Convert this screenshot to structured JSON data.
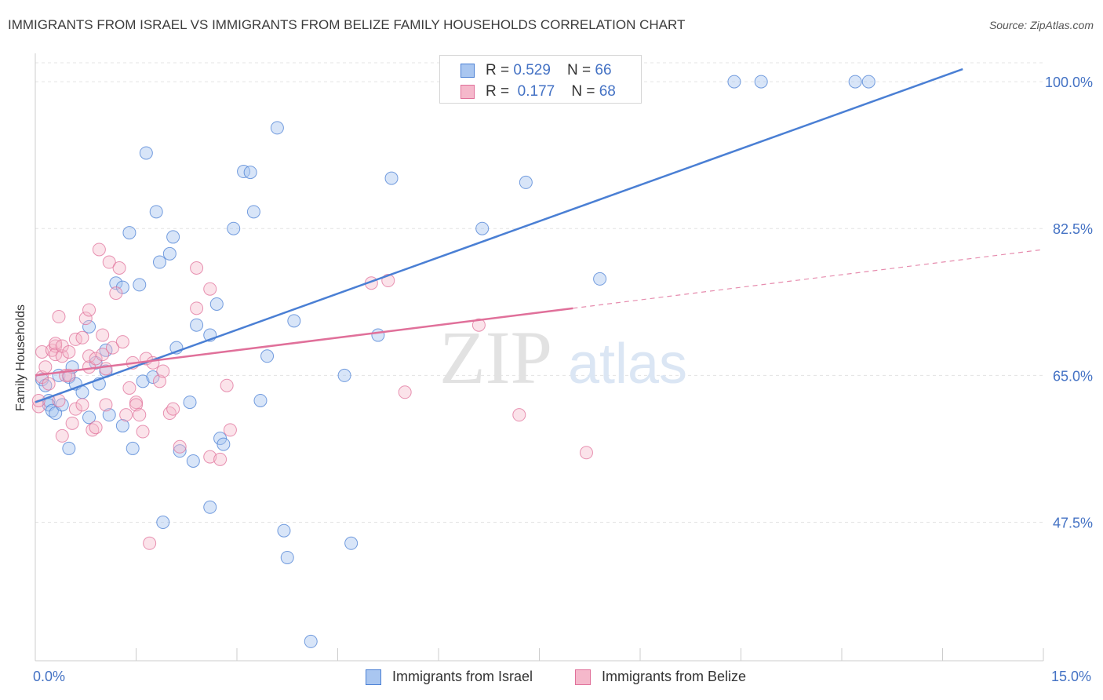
{
  "title": "IMMIGRANTS FROM ISRAEL VS IMMIGRANTS FROM BELIZE FAMILY HOUSEHOLDS CORRELATION CHART",
  "source": "Source: ZipAtlas.com",
  "watermark": {
    "zip": "ZIP",
    "atlas": "atlas"
  },
  "legend": {
    "israel": {
      "r_label": "R = ",
      "r_value": "0.529",
      "n_label": "N = ",
      "n_value": "66",
      "color": "#4a7fd4",
      "fill": "#a9c6f0"
    },
    "belize": {
      "r_label": "R = ",
      "r_value": "0.177",
      "n_label": "N = ",
      "n_value": "68",
      "color": "#e0709a",
      "fill": "#f5b8cb"
    }
  },
  "bottom_legend": {
    "israel": "Immigrants from Israel",
    "belize": "Immigrants from Belize"
  },
  "chart_data": {
    "type": "scatter",
    "title": "IMMIGRANTS FROM ISRAEL VS IMMIGRANTS FROM BELIZE FAMILY HOUSEHOLDS CORRELATION CHART",
    "xlabel": "",
    "ylabel": "Family Households",
    "xlim": [
      0,
      15
    ],
    "ylim": [
      31,
      103
    ],
    "x_tick_labels": [
      "0.0%",
      "15.0%"
    ],
    "y_ticks": [
      47.5,
      65.0,
      82.5,
      100.0
    ],
    "y_tick_labels": [
      "47.5%",
      "65.0%",
      "82.5%",
      "100.0%"
    ],
    "grid": true,
    "series": [
      {
        "name": "Immigrants from Israel",
        "color": "#4a7fd4",
        "trend": {
          "x0": 0.0,
          "y0": 61.8,
          "x1": 13.8,
          "y1": 101.5,
          "solid_to": 13.8
        },
        "points": [
          [
            0.1,
            64.5
          ],
          [
            0.15,
            63.8
          ],
          [
            0.2,
            62.0
          ],
          [
            0.2,
            61.5
          ],
          [
            0.25,
            60.8
          ],
          [
            0.3,
            60.5
          ],
          [
            0.35,
            65.0
          ],
          [
            0.4,
            61.5
          ],
          [
            0.5,
            64.8
          ],
          [
            0.5,
            56.3
          ],
          [
            0.55,
            66.0
          ],
          [
            0.6,
            64.0
          ],
          [
            0.7,
            63.0
          ],
          [
            0.8,
            60.0
          ],
          [
            0.8,
            70.8
          ],
          [
            0.9,
            66.5
          ],
          [
            0.95,
            64.0
          ],
          [
            1.05,
            68.0
          ],
          [
            1.05,
            65.5
          ],
          [
            1.1,
            60.3
          ],
          [
            1.2,
            76.0
          ],
          [
            1.3,
            75.5
          ],
          [
            1.3,
            59.0
          ],
          [
            1.4,
            82.0
          ],
          [
            1.45,
            56.3
          ],
          [
            1.55,
            75.8
          ],
          [
            1.6,
            64.3
          ],
          [
            1.65,
            91.5
          ],
          [
            1.75,
            64.8
          ],
          [
            1.8,
            84.5
          ],
          [
            1.85,
            78.5
          ],
          [
            1.9,
            47.5
          ],
          [
            2.0,
            79.5
          ],
          [
            2.05,
            81.5
          ],
          [
            2.1,
            68.3
          ],
          [
            2.15,
            56.0
          ],
          [
            2.3,
            61.8
          ],
          [
            2.35,
            54.8
          ],
          [
            2.4,
            71.0
          ],
          [
            2.6,
            69.8
          ],
          [
            2.6,
            49.3
          ],
          [
            2.7,
            73.5
          ],
          [
            2.75,
            57.5
          ],
          [
            2.8,
            56.8
          ],
          [
            2.95,
            82.5
          ],
          [
            3.1,
            89.3
          ],
          [
            3.2,
            89.2
          ],
          [
            3.25,
            84.5
          ],
          [
            3.35,
            62.0
          ],
          [
            3.45,
            67.3
          ],
          [
            3.6,
            94.5
          ],
          [
            3.7,
            46.5
          ],
          [
            3.75,
            43.3
          ],
          [
            3.85,
            71.5
          ],
          [
            4.1,
            33.3
          ],
          [
            4.6,
            65.0
          ],
          [
            4.7,
            45.0
          ],
          [
            5.1,
            69.8
          ],
          [
            5.3,
            88.5
          ],
          [
            6.65,
            82.5
          ],
          [
            7.3,
            88.0
          ],
          [
            8.4,
            76.5
          ],
          [
            10.4,
            100.0
          ],
          [
            10.8,
            100.0
          ],
          [
            12.2,
            100.0
          ],
          [
            12.4,
            100.0
          ]
        ]
      },
      {
        "name": "Immigrants from Belize",
        "color": "#e0709a",
        "trend": {
          "x0": 0.0,
          "y0": 65.0,
          "x1": 15.0,
          "y1": 80.0,
          "solid_to": 8.0
        },
        "points": [
          [
            0.05,
            61.3
          ],
          [
            0.05,
            62.0
          ],
          [
            0.1,
            64.8
          ],
          [
            0.1,
            67.8
          ],
          [
            0.15,
            66.0
          ],
          [
            0.2,
            64.0
          ],
          [
            0.25,
            68.0
          ],
          [
            0.3,
            68.5
          ],
          [
            0.3,
            68.8
          ],
          [
            0.3,
            67.5
          ],
          [
            0.35,
            62.0
          ],
          [
            0.35,
            72.0
          ],
          [
            0.4,
            67.3
          ],
          [
            0.4,
            68.5
          ],
          [
            0.4,
            57.8
          ],
          [
            0.45,
            65.0
          ],
          [
            0.5,
            65.0
          ],
          [
            0.5,
            67.8
          ],
          [
            0.55,
            59.3
          ],
          [
            0.6,
            61.0
          ],
          [
            0.6,
            69.3
          ],
          [
            0.7,
            61.5
          ],
          [
            0.7,
            69.5
          ],
          [
            0.75,
            71.8
          ],
          [
            0.8,
            66.0
          ],
          [
            0.8,
            67.3
          ],
          [
            0.8,
            72.8
          ],
          [
            0.85,
            58.5
          ],
          [
            0.9,
            58.8
          ],
          [
            0.9,
            67.0
          ],
          [
            0.95,
            80.0
          ],
          [
            1.0,
            69.8
          ],
          [
            1.0,
            67.5
          ],
          [
            1.05,
            65.8
          ],
          [
            1.05,
            61.5
          ],
          [
            1.1,
            78.5
          ],
          [
            1.15,
            68.3
          ],
          [
            1.2,
            74.8
          ],
          [
            1.25,
            77.8
          ],
          [
            1.3,
            69.0
          ],
          [
            1.35,
            60.3
          ],
          [
            1.4,
            63.5
          ],
          [
            1.45,
            66.5
          ],
          [
            1.5,
            61.8
          ],
          [
            1.5,
            61.5
          ],
          [
            1.55,
            60.3
          ],
          [
            1.6,
            58.3
          ],
          [
            1.65,
            67.0
          ],
          [
            1.7,
            45.0
          ],
          [
            1.75,
            66.5
          ],
          [
            1.85,
            64.3
          ],
          [
            1.9,
            65.5
          ],
          [
            2.0,
            60.5
          ],
          [
            2.05,
            61.0
          ],
          [
            2.15,
            56.5
          ],
          [
            2.4,
            77.8
          ],
          [
            2.4,
            73.0
          ],
          [
            2.6,
            55.3
          ],
          [
            2.6,
            75.3
          ],
          [
            2.75,
            55.0
          ],
          [
            2.85,
            63.8
          ],
          [
            2.9,
            58.5
          ],
          [
            5.0,
            76.0
          ],
          [
            5.25,
            76.3
          ],
          [
            5.5,
            63.0
          ],
          [
            6.6,
            71.0
          ],
          [
            7.2,
            60.3
          ],
          [
            8.2,
            55.8
          ]
        ]
      }
    ]
  }
}
